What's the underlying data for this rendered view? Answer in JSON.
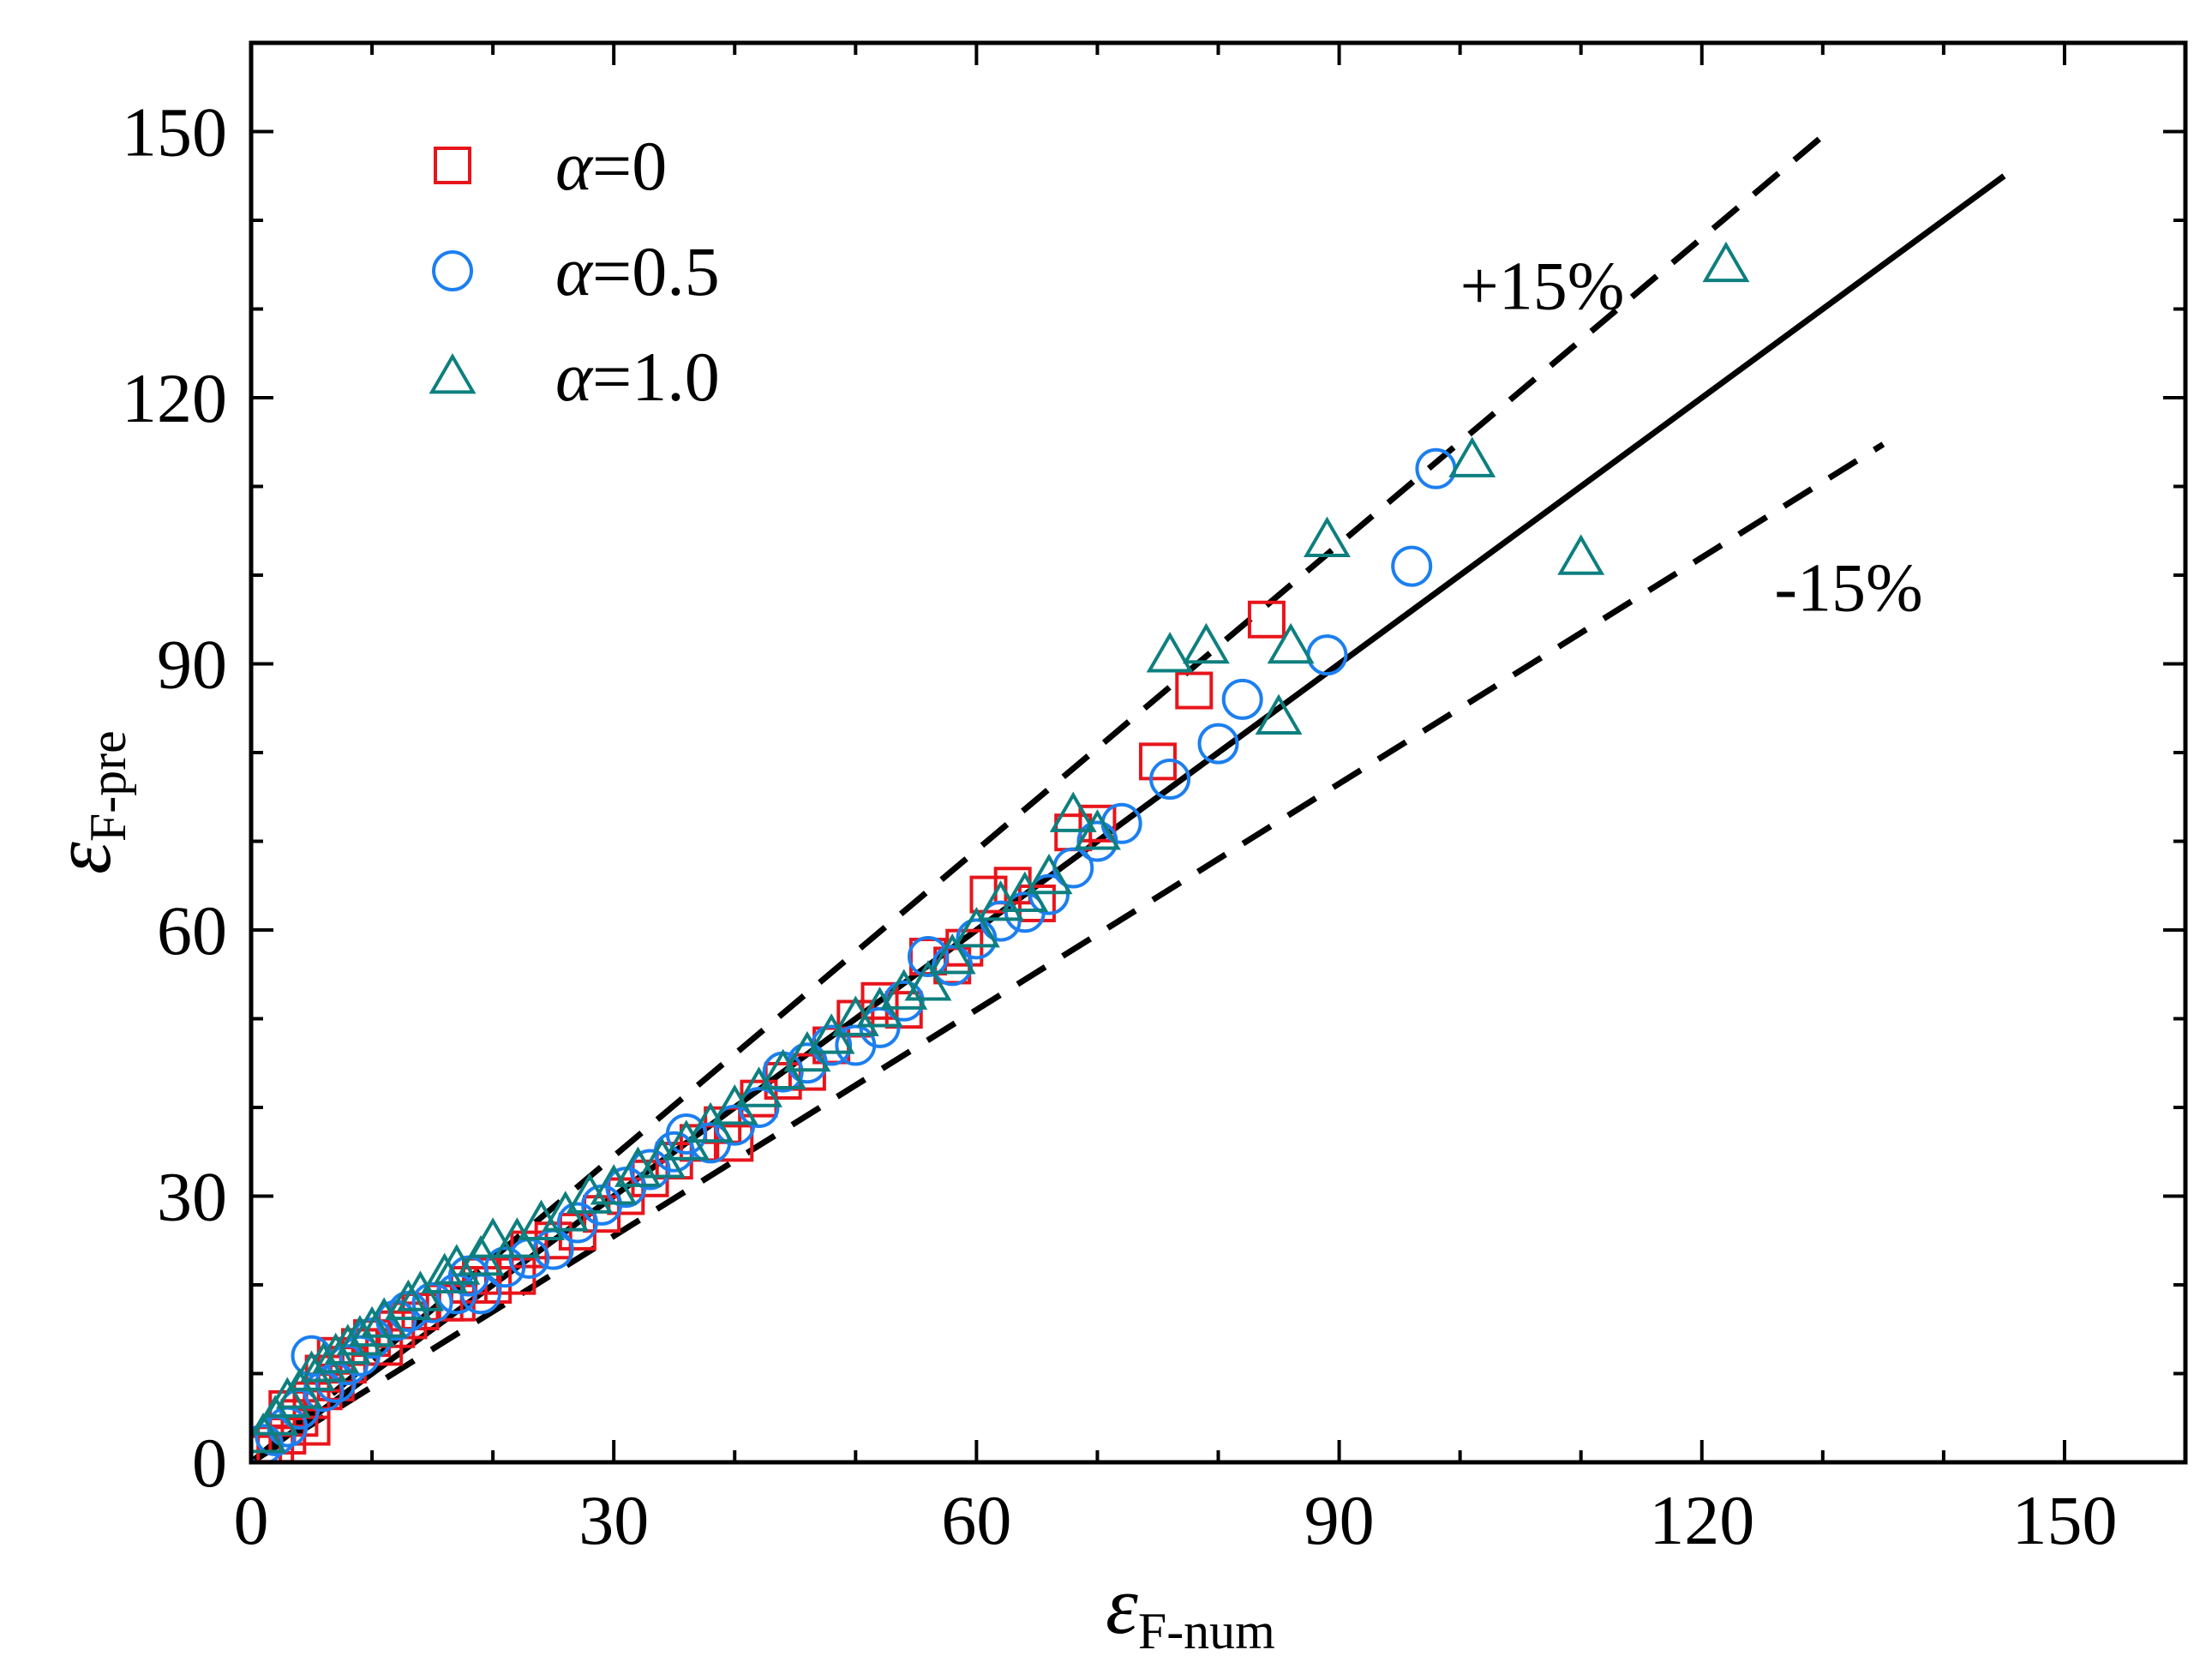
{
  "chart_data": {
    "type": "scatter",
    "xlabel": {
      "symbol": "ε",
      "subscript": "F-num"
    },
    "ylabel": {
      "symbol": "ε",
      "subscript": "F-pre"
    },
    "xlim": [
      0,
      160
    ],
    "ylim": [
      0,
      160
    ],
    "xticks": [
      0,
      30,
      60,
      90,
      120,
      150
    ],
    "yticks": [
      0,
      30,
      60,
      90,
      120,
      150
    ],
    "minor_tick_step": 10,
    "legend_placement": "top-left",
    "colors": {
      "alpha0": "#e8141b",
      "alpha05": "#1c7ff0",
      "alpha1": "#0e7f7f",
      "lines": "#000000"
    },
    "reference_lines": [
      {
        "name": "y = x",
        "style": "solid",
        "x": [
          0,
          145
        ],
        "y": [
          0,
          145
        ]
      },
      {
        "name": "+15%",
        "style": "dashed",
        "x": [
          0,
          130
        ],
        "y": [
          0,
          149.5
        ]
      },
      {
        "name": "-15%",
        "style": "dashed",
        "x": [
          0,
          135
        ],
        "y": [
          0,
          114.75
        ]
      }
    ],
    "annotations": [
      {
        "text": "+15%",
        "x": 100,
        "y": 130
      },
      {
        "text": "-15%",
        "x": 126,
        "y": 96
      }
    ],
    "series": [
      {
        "name": "α=0",
        "symbol": "α",
        "label_value": "=0",
        "marker": "square",
        "color": "#e8141b",
        "points": [
          [
            1,
            1
          ],
          [
            2,
            2
          ],
          [
            3,
            3
          ],
          [
            3,
            6
          ],
          [
            4,
            5
          ],
          [
            5,
            4
          ],
          [
            5,
            7
          ],
          [
            6,
            8
          ],
          [
            6,
            10
          ],
          [
            7,
            9
          ],
          [
            7,
            12
          ],
          [
            8,
            11
          ],
          [
            9,
            13
          ],
          [
            10,
            14
          ],
          [
            11,
            13
          ],
          [
            12,
            15
          ],
          [
            13,
            16
          ],
          [
            14,
            17
          ],
          [
            16,
            18
          ],
          [
            17,
            18
          ],
          [
            18,
            20
          ],
          [
            19,
            21
          ],
          [
            20,
            20
          ],
          [
            22,
            21
          ],
          [
            23,
            24
          ],
          [
            25,
            25
          ],
          [
            27,
            26
          ],
          [
            29,
            28
          ],
          [
            31,
            30
          ],
          [
            33,
            32
          ],
          [
            35,
            34
          ],
          [
            37,
            36
          ],
          [
            39,
            38
          ],
          [
            40,
            36
          ],
          [
            42,
            41
          ],
          [
            44,
            43
          ],
          [
            46,
            44
          ],
          [
            48,
            47
          ],
          [
            50,
            50
          ],
          [
            52,
            52
          ],
          [
            54,
            51
          ],
          [
            56,
            57
          ],
          [
            58,
            56
          ],
          [
            59,
            58
          ],
          [
            61,
            64
          ],
          [
            63,
            65
          ],
          [
            65,
            63
          ],
          [
            68,
            71
          ],
          [
            70,
            72
          ],
          [
            75,
            79
          ],
          [
            78,
            87
          ],
          [
            84,
            95
          ]
        ]
      },
      {
        "name": "α=0.5",
        "symbol": "α",
        "label_value": "=0.5",
        "marker": "circle",
        "color": "#1c7ff0",
        "points": [
          [
            1,
            2
          ],
          [
            2,
            3
          ],
          [
            3,
            4
          ],
          [
            4,
            6
          ],
          [
            5,
            12
          ],
          [
            6,
            8
          ],
          [
            7,
            9
          ],
          [
            8,
            11
          ],
          [
            9,
            12
          ],
          [
            10,
            14
          ],
          [
            12,
            16
          ],
          [
            13,
            17
          ],
          [
            15,
            18
          ],
          [
            17,
            19
          ],
          [
            18,
            21
          ],
          [
            19,
            19
          ],
          [
            21,
            22
          ],
          [
            23,
            23
          ],
          [
            25,
            24
          ],
          [
            27,
            27
          ],
          [
            29,
            29
          ],
          [
            31,
            31
          ],
          [
            33,
            33
          ],
          [
            35,
            35
          ],
          [
            36,
            37
          ],
          [
            38,
            36
          ],
          [
            40,
            38
          ],
          [
            42,
            40
          ],
          [
            44,
            44
          ],
          [
            46,
            45
          ],
          [
            48,
            47
          ],
          [
            50,
            47
          ],
          [
            52,
            49
          ],
          [
            54,
            52
          ],
          [
            56,
            57
          ],
          [
            58,
            56
          ],
          [
            60,
            59
          ],
          [
            62,
            61
          ],
          [
            64,
            62
          ],
          [
            66,
            64
          ],
          [
            68,
            67
          ],
          [
            70,
            70
          ],
          [
            72,
            72
          ],
          [
            76,
            77
          ],
          [
            80,
            81
          ],
          [
            82,
            86
          ],
          [
            89,
            91
          ],
          [
            96,
            101
          ],
          [
            98,
            112
          ]
        ]
      },
      {
        "name": "α=1.0",
        "symbol": "α",
        "label_value": "=1.0",
        "marker": "triangle",
        "color": "#0e7f7f",
        "points": [
          [
            1,
            3
          ],
          [
            2,
            5
          ],
          [
            3,
            7
          ],
          [
            4,
            8
          ],
          [
            5,
            10
          ],
          [
            6,
            11
          ],
          [
            7,
            12
          ],
          [
            8,
            13
          ],
          [
            9,
            14
          ],
          [
            10,
            15
          ],
          [
            11,
            16
          ],
          [
            13,
            18
          ],
          [
            14,
            19
          ],
          [
            16,
            21
          ],
          [
            17,
            22
          ],
          [
            19,
            23
          ],
          [
            20,
            25
          ],
          [
            22,
            25
          ],
          [
            24,
            27
          ],
          [
            26,
            28
          ],
          [
            28,
            30
          ],
          [
            30,
            31
          ],
          [
            32,
            33
          ],
          [
            34,
            34
          ],
          [
            36,
            36
          ],
          [
            38,
            38
          ],
          [
            40,
            40
          ],
          [
            42,
            42
          ],
          [
            44,
            44
          ],
          [
            46,
            46
          ],
          [
            48,
            48
          ],
          [
            50,
            50
          ],
          [
            52,
            51
          ],
          [
            54,
            53
          ],
          [
            56,
            54
          ],
          [
            58,
            57
          ],
          [
            60,
            60
          ],
          [
            62,
            63
          ],
          [
            64,
            64
          ],
          [
            66,
            66
          ],
          [
            68,
            73
          ],
          [
            70,
            71
          ],
          [
            76,
            91
          ],
          [
            79,
            92
          ],
          [
            85,
            84
          ],
          [
            86,
            92
          ],
          [
            89,
            104
          ],
          [
            101,
            113
          ],
          [
            110,
            102
          ],
          [
            122,
            135
          ]
        ]
      }
    ]
  }
}
